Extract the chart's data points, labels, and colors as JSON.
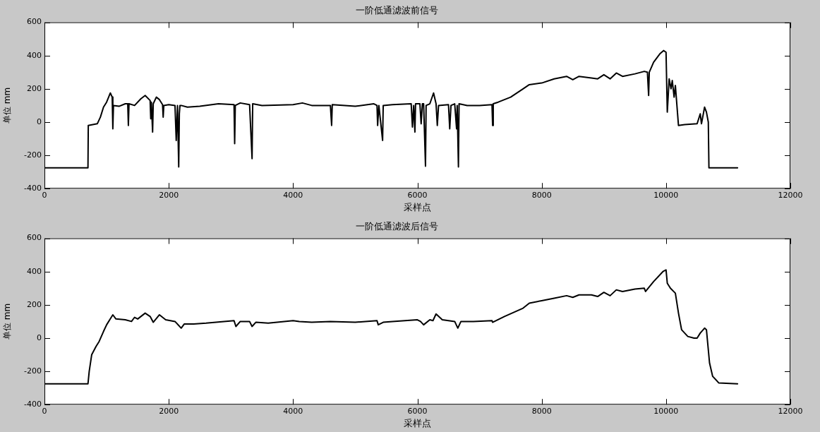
{
  "chart_data": [
    {
      "type": "line",
      "title": "一阶低通滤波前信号",
      "xlabel": "采样点",
      "ylabel": "单位 mm",
      "color": "#000000",
      "grid": false,
      "legend": false,
      "marker": "none",
      "xlim": [
        0,
        12000
      ],
      "ylim": [
        -400,
        600
      ],
      "xticks": [
        0,
        2000,
        4000,
        6000,
        8000,
        10000,
        12000
      ],
      "yticks": [
        -400,
        -200,
        0,
        200,
        400,
        600
      ],
      "x": [
        0,
        700,
        705,
        850,
        900,
        950,
        1000,
        1060,
        1090,
        1100,
        1110,
        1200,
        1300,
        1340,
        1350,
        1360,
        1450,
        1550,
        1620,
        1700,
        1710,
        1720,
        1740,
        1750,
        1800,
        1850,
        1900,
        1910,
        1920,
        2000,
        2100,
        2120,
        2140,
        2160,
        2170,
        2180,
        2200,
        2300,
        2500,
        2800,
        3050,
        3060,
        3070,
        3150,
        3300,
        3340,
        3350,
        3500,
        4000,
        4150,
        4300,
        4600,
        4620,
        4630,
        5000,
        5300,
        5350,
        5360,
        5380,
        5440,
        5450,
        5600,
        5900,
        5920,
        5940,
        5960,
        5970,
        6040,
        6060,
        6080,
        6100,
        6130,
        6140,
        6200,
        6260,
        6300,
        6320,
        6340,
        6500,
        6520,
        6540,
        6600,
        6630,
        6640,
        6660,
        6670,
        6800,
        7000,
        7200,
        7210,
        7220,
        7300,
        7500,
        7700,
        7800,
        8000,
        8200,
        8400,
        8500,
        8600,
        8800,
        8900,
        9000,
        9100,
        9200,
        9300,
        9500,
        9650,
        9700,
        9720,
        9730,
        9800,
        9900,
        9960,
        10000,
        10020,
        10050,
        10080,
        10100,
        10130,
        10150,
        10200,
        10300,
        10500,
        10550,
        10570,
        10620,
        10650,
        10680,
        10690,
        11150
      ],
      "values": [
        -275,
        -275,
        -20,
        -10,
        30,
        90,
        120,
        175,
        150,
        -40,
        100,
        95,
        110,
        110,
        -20,
        110,
        100,
        140,
        160,
        130,
        20,
        120,
        -60,
        110,
        150,
        135,
        105,
        30,
        100,
        105,
        100,
        -110,
        100,
        -270,
        50,
        100,
        100,
        90,
        95,
        110,
        105,
        -130,
        100,
        115,
        105,
        -220,
        110,
        100,
        105,
        115,
        100,
        100,
        -20,
        105,
        95,
        110,
        100,
        -20,
        100,
        -110,
        100,
        105,
        110,
        -30,
        100,
        -60,
        110,
        110,
        -10,
        110,
        110,
        -265,
        100,
        110,
        175,
        110,
        -20,
        100,
        105,
        -40,
        100,
        110,
        -40,
        100,
        -270,
        110,
        100,
        100,
        105,
        -20,
        110,
        120,
        150,
        200,
        225,
        235,
        260,
        275,
        255,
        275,
        265,
        260,
        285,
        260,
        295,
        275,
        290,
        305,
        300,
        160,
        300,
        360,
        410,
        430,
        420,
        60,
        260,
        200,
        250,
        150,
        220,
        -20,
        -15,
        -10,
        50,
        -10,
        90,
        60,
        0,
        -275,
        -275
      ]
    },
    {
      "type": "line",
      "title": "一阶低通滤波后信号",
      "xlabel": "采样点",
      "ylabel": "单位 mm",
      "color": "#000000",
      "grid": false,
      "legend": false,
      "marker": "none",
      "xlim": [
        0,
        12000
      ],
      "ylim": [
        -400,
        600
      ],
      "xticks": [
        0,
        2000,
        4000,
        6000,
        8000,
        10000,
        12000
      ],
      "yticks": [
        -400,
        -200,
        0,
        200,
        400,
        600
      ],
      "x": [
        0,
        700,
        720,
        760,
        830,
        880,
        950,
        1000,
        1050,
        1100,
        1150,
        1300,
        1400,
        1450,
        1500,
        1620,
        1700,
        1750,
        1850,
        1950,
        2100,
        2200,
        2250,
        2400,
        2600,
        3050,
        3080,
        3150,
        3300,
        3340,
        3400,
        3600,
        4000,
        4100,
        4300,
        4600,
        5000,
        5350,
        5370,
        5450,
        5600,
        6000,
        6050,
        6100,
        6200,
        6250,
        6300,
        6400,
        6600,
        6650,
        6700,
        6900,
        7200,
        7210,
        7400,
        7700,
        7800,
        8000,
        8200,
        8400,
        8500,
        8600,
        8800,
        8900,
        9000,
        9100,
        9200,
        9300,
        9500,
        9650,
        9670,
        9800,
        9950,
        10000,
        10020,
        10070,
        10150,
        10200,
        10250,
        10350,
        10450,
        10500,
        10550,
        10620,
        10650,
        10700,
        10750,
        10850,
        11150
      ],
      "values": [
        -275,
        -275,
        -200,
        -100,
        -50,
        -20,
        40,
        80,
        110,
        140,
        115,
        110,
        100,
        125,
        115,
        150,
        130,
        95,
        140,
        110,
        100,
        60,
        85,
        85,
        90,
        105,
        70,
        100,
        100,
        70,
        95,
        90,
        105,
        100,
        95,
        100,
        95,
        105,
        80,
        95,
        100,
        110,
        100,
        80,
        110,
        105,
        145,
        110,
        100,
        60,
        100,
        100,
        105,
        95,
        130,
        180,
        210,
        225,
        240,
        255,
        245,
        260,
        260,
        250,
        275,
        255,
        290,
        280,
        295,
        300,
        280,
        340,
        400,
        410,
        330,
        300,
        270,
        150,
        50,
        10,
        0,
        0,
        30,
        60,
        50,
        -150,
        -230,
        -270,
        -275
      ]
    }
  ]
}
